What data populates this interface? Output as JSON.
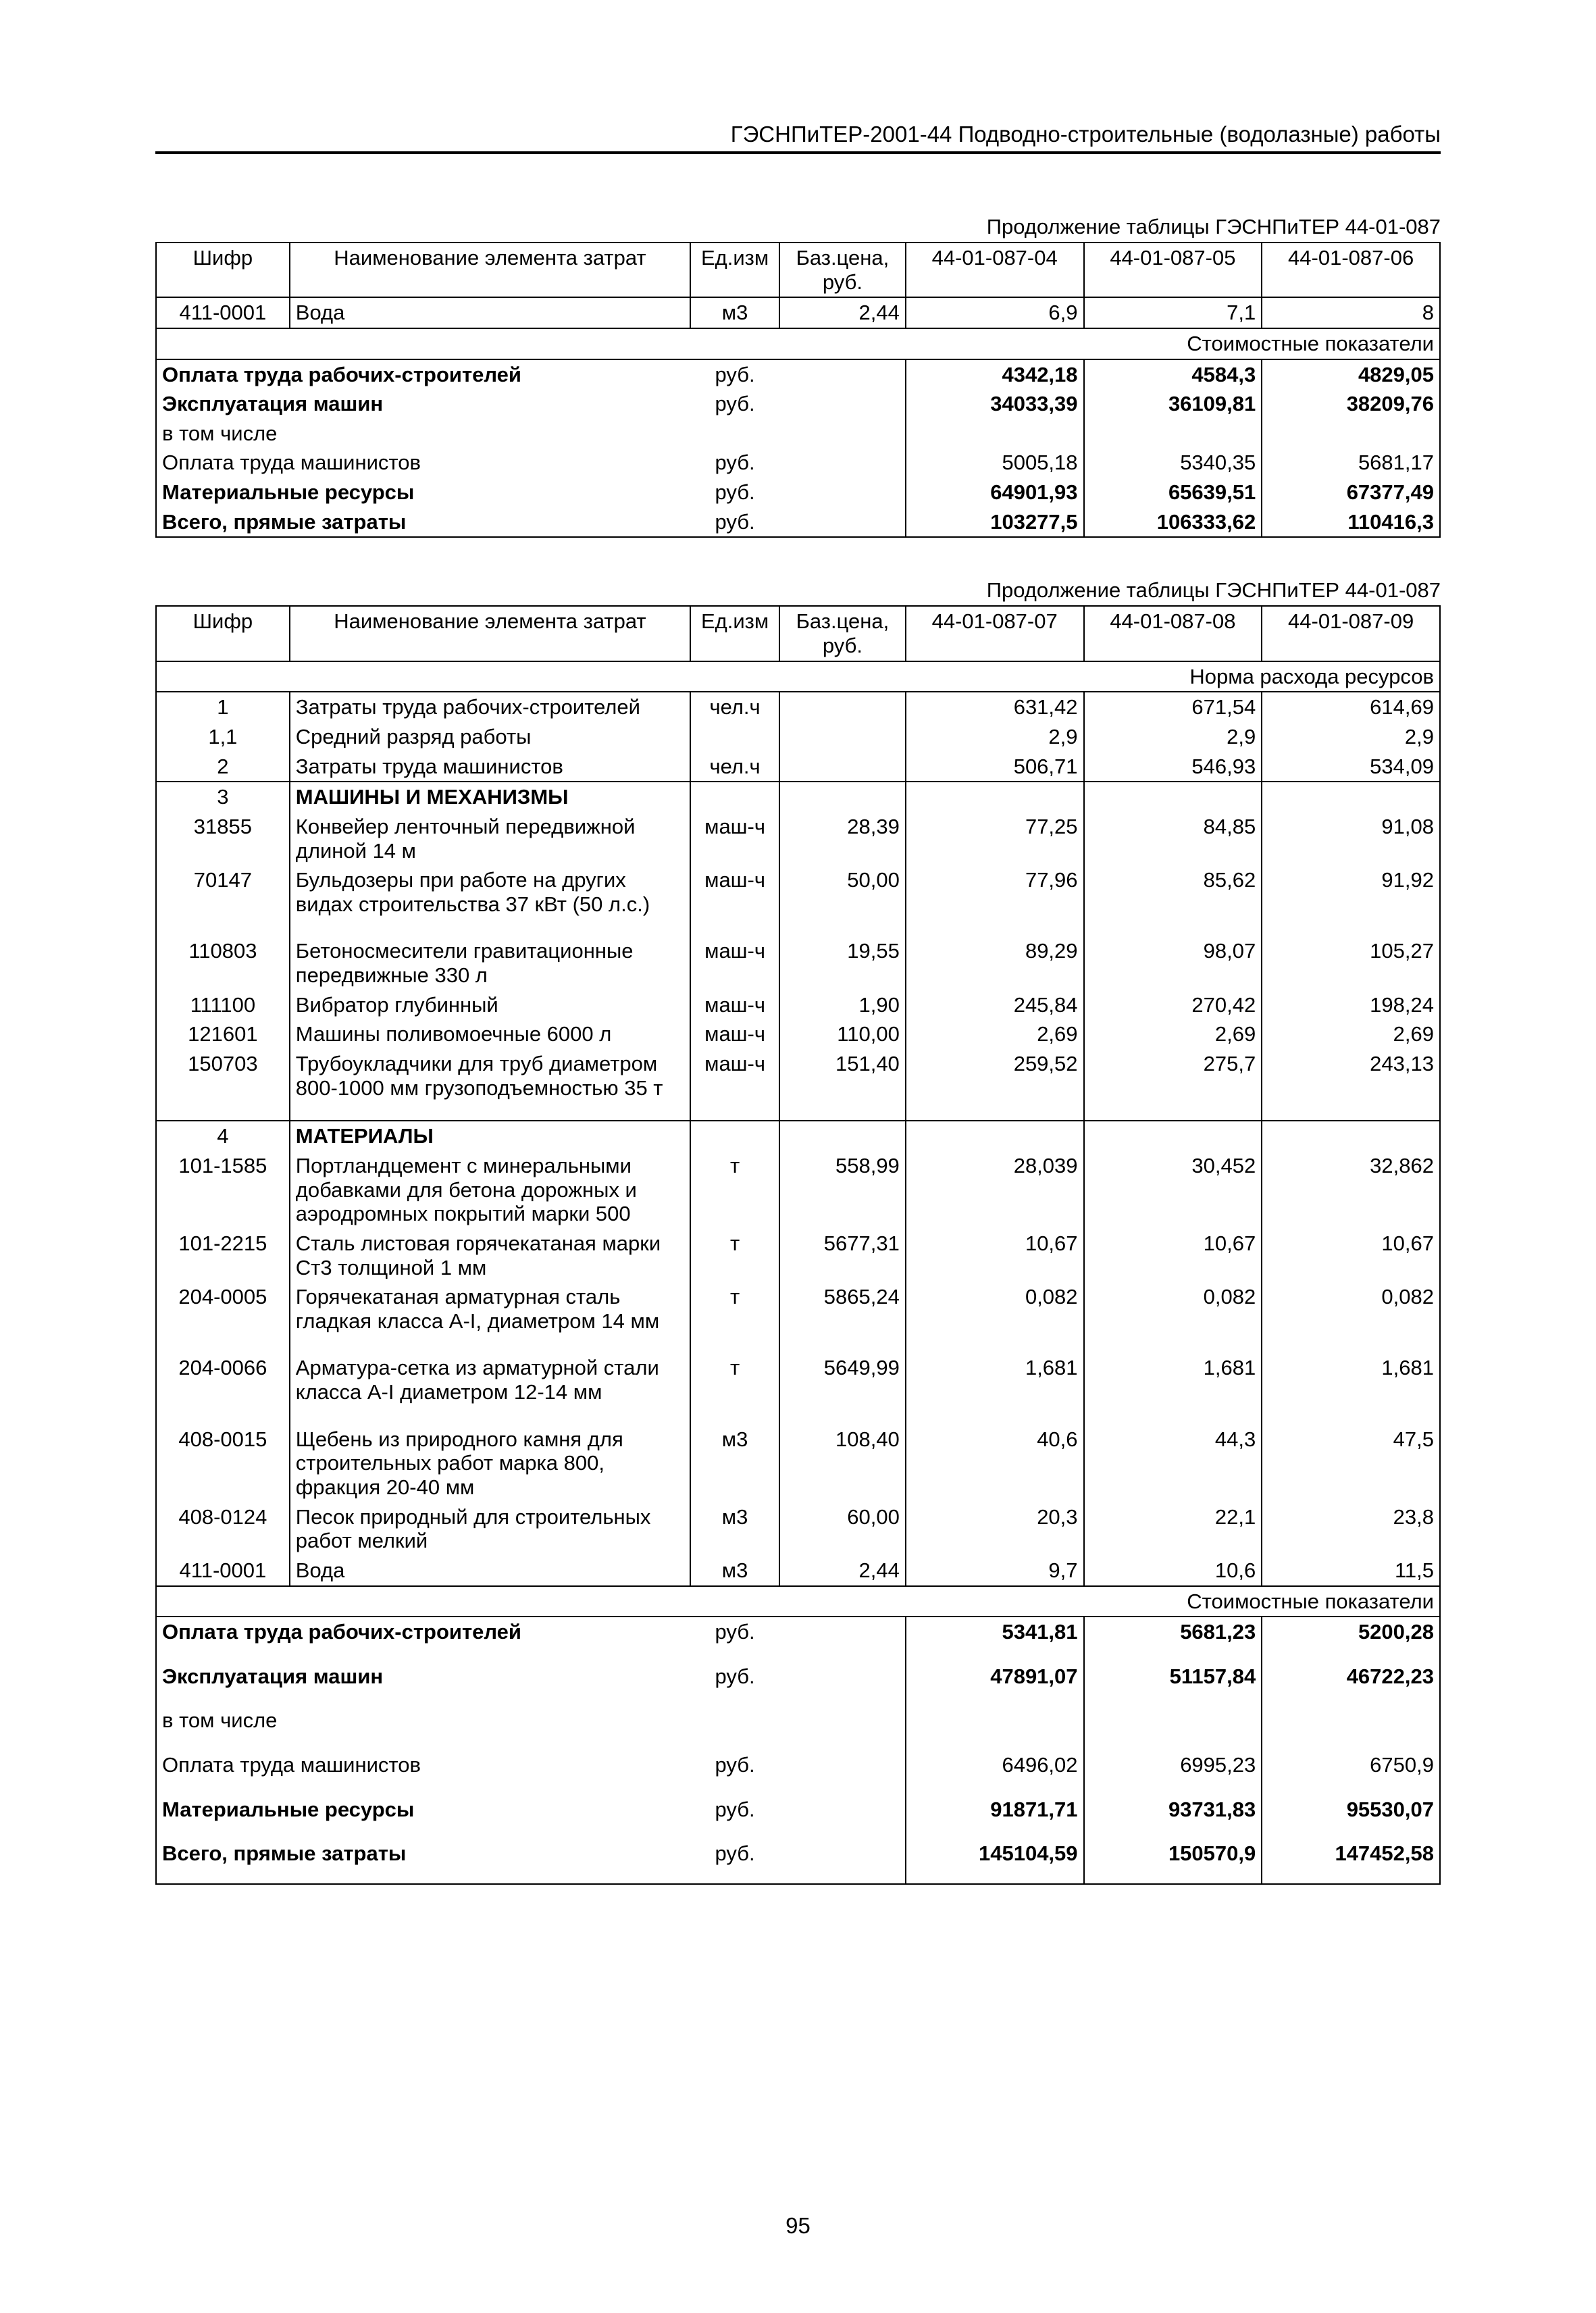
{
  "doc_header": "ГЭСНПиТЕР-2001-44 Подводно-строительные (водолазные) работы",
  "page_number": "95",
  "table1": {
    "caption": "Продолжение таблицы ГЭСНПиТЕР 44-01-087",
    "head": {
      "code": "Шифр",
      "name": "Наименование элемента затрат",
      "unit": "Ед.изм",
      "price": "Баз.цена, руб.",
      "c1": "44-01-087-04",
      "c2": "44-01-087-05",
      "c3": "44-01-087-06"
    },
    "row_water": {
      "code": "411-0001",
      "name": "Вода",
      "unit": "м3",
      "price": "2,44",
      "v1": "6,9",
      "v2": "7,1",
      "v3": "8"
    },
    "sub_cost": "Стоимостные показатели",
    "cost_rows": [
      {
        "name": "Оплата труда рабочих-строителей",
        "unit": "руб.",
        "v1": "4342,18",
        "v2": "4584,3",
        "v3": "4829,05",
        "bold": true
      },
      {
        "name": "Эксплуатация машин",
        "unit": "руб.",
        "v1": "34033,39",
        "v2": "36109,81",
        "v3": "38209,76",
        "bold": true
      },
      {
        "name": "в том числе",
        "unit": "",
        "v1": "",
        "v2": "",
        "v3": "",
        "bold": false
      },
      {
        "name": "Оплата труда машинистов",
        "unit": "руб.",
        "v1": "5005,18",
        "v2": "5340,35",
        "v3": "5681,17",
        "bold": false
      },
      {
        "name": "Материальные ресурсы",
        "unit": "руб.",
        "v1": "64901,93",
        "v2": "65639,51",
        "v3": "67377,49",
        "bold": true
      },
      {
        "name": "Всего, прямые затраты",
        "unit": "руб.",
        "v1": "103277,5",
        "v2": "106333,62",
        "v3": "110416,3",
        "bold": true
      }
    ]
  },
  "table2": {
    "caption": "Продолжение таблицы ГЭСНПиТЕР 44-01-087",
    "head": {
      "code": "Шифр",
      "name": "Наименование элемента затрат",
      "unit": "Ед.изм",
      "price": "Баз.цена, руб.",
      "c1": "44-01-087-07",
      "c2": "44-01-087-08",
      "c3": "44-01-087-09"
    },
    "sub_norm": "Норма расхода ресурсов",
    "rows": [
      {
        "code": "1",
        "name": "Затраты труда рабочих-строителей",
        "unit": "чел.ч",
        "price": "",
        "v1": "631,42",
        "v2": "671,54",
        "v3": "614,69"
      },
      {
        "code": "1,1",
        "name": "Средний разряд работы",
        "unit": "",
        "price": "",
        "v1": "2,9",
        "v2": "2,9",
        "v3": "2,9"
      },
      {
        "code": "2",
        "name": "Затраты труда машинистов",
        "unit": "чел.ч",
        "price": "",
        "v1": "506,71",
        "v2": "546,93",
        "v3": "534,09"
      },
      {
        "code": "3",
        "name": "МАШИНЫ И МЕХАНИЗМЫ",
        "unit": "",
        "price": "",
        "v1": "",
        "v2": "",
        "v3": "",
        "bold": true,
        "sepTop": true
      },
      {
        "code": "31855",
        "name": "Конвейер ленточный передвижной длиной 14 м",
        "unit": "маш-ч",
        "price": "28,39",
        "v1": "77,25",
        "v2": "84,85",
        "v3": "91,08"
      },
      {
        "code": "70147",
        "name": "Бульдозеры при работе на других видах строительства 37 кВт (50 л.с.)",
        "unit": "маш-ч",
        "price": "50,00",
        "v1": "77,96",
        "v2": "85,62",
        "v3": "91,92",
        "padBot": true
      },
      {
        "code": "110803",
        "name": "Бетоносмесители гравитационные передвижные 330 л",
        "unit": "маш-ч",
        "price": "19,55",
        "v1": "89,29",
        "v2": "98,07",
        "v3": "105,27"
      },
      {
        "code": "111100",
        "name": "Вибратор глубинный",
        "unit": "маш-ч",
        "price": "1,90",
        "v1": "245,84",
        "v2": "270,42",
        "v3": "198,24"
      },
      {
        "code": "121601",
        "name": "Машины поливомоечные 6000 л",
        "unit": "маш-ч",
        "price": "110,00",
        "v1": "2,69",
        "v2": "2,69",
        "v3": "2,69"
      },
      {
        "code": "150703",
        "name": "Трубоукладчики для труб диаметром 800-1000 мм грузоподъемностью 35 т",
        "unit": "маш-ч",
        "price": "151,40",
        "v1": "259,52",
        "v2": "275,7",
        "v3": "243,13",
        "padBot": true
      },
      {
        "code": "4",
        "name": "МАТЕРИАЛЫ",
        "unit": "",
        "price": "",
        "v1": "",
        "v2": "",
        "v3": "",
        "bold": true,
        "sepTop": true
      },
      {
        "code": "101-1585",
        "name": "Портландцемент с минеральными добавками для бетона дорожных и аэродромных покрытий марки 500",
        "unit": "т",
        "price": "558,99",
        "v1": "28,039",
        "v2": "30,452",
        "v3": "32,862"
      },
      {
        "code": "101-2215",
        "name": "Сталь листовая горячекатаная марки Ст3 толщиной 1 мм",
        "unit": "т",
        "price": "5677,31",
        "v1": "10,67",
        "v2": "10,67",
        "v3": "10,67"
      },
      {
        "code": "204-0005",
        "name": "Горячекатаная арматурная сталь гладкая класса А-I, диаметром 14 мм",
        "unit": "т",
        "price": "5865,24",
        "v1": "0,082",
        "v2": "0,082",
        "v3": "0,082",
        "padBot": true
      },
      {
        "code": "204-0066",
        "name": "Арматура-сетка из арматурной стали класса А-I диаметром 12-14 мм",
        "unit": "т",
        "price": "5649,99",
        "v1": "1,681",
        "v2": "1,681",
        "v3": "1,681",
        "padBot": true
      },
      {
        "code": "408-0015",
        "name": "Щебень из природного камня для строительных работ марка 800, фракция 20-40 мм",
        "unit": "м3",
        "price": "108,40",
        "v1": "40,6",
        "v2": "44,3",
        "v3": "47,5"
      },
      {
        "code": "408-0124",
        "name": "Песок природный для строительных работ мелкий",
        "unit": "м3",
        "price": "60,00",
        "v1": "20,3",
        "v2": "22,1",
        "v3": "23,8"
      },
      {
        "code": "411-0001",
        "name": "Вода",
        "unit": "м3",
        "price": "2,44",
        "v1": "9,7",
        "v2": "10,6",
        "v3": "11,5"
      }
    ],
    "sub_cost": "Стоимостные показатели",
    "cost_rows": [
      {
        "name": "Оплата труда рабочих-строителей",
        "unit": "руб.",
        "v1": "5341,81",
        "v2": "5681,23",
        "v3": "5200,28",
        "bold": true,
        "padBot": true
      },
      {
        "name": "Эксплуатация машин",
        "unit": "руб.",
        "v1": "47891,07",
        "v2": "51157,84",
        "v3": "46722,23",
        "bold": true,
        "padBot": true
      },
      {
        "name": "в том числе",
        "unit": "",
        "v1": "",
        "v2": "",
        "v3": "",
        "bold": false,
        "padBot": true
      },
      {
        "name": "Оплата труда машинистов",
        "unit": "руб.",
        "v1": "6496,02",
        "v2": "6995,23",
        "v3": "6750,9",
        "bold": false,
        "padBot": true
      },
      {
        "name": "Материальные ресурсы",
        "unit": "руб.",
        "v1": "91871,71",
        "v2": "93731,83",
        "v3": "95530,07",
        "bold": true,
        "padBot": true
      },
      {
        "name": "Всего, прямые затраты",
        "unit": "руб.",
        "v1": "145104,59",
        "v2": "150570,9",
        "v3": "147452,58",
        "bold": true,
        "padBot": true
      }
    ]
  }
}
